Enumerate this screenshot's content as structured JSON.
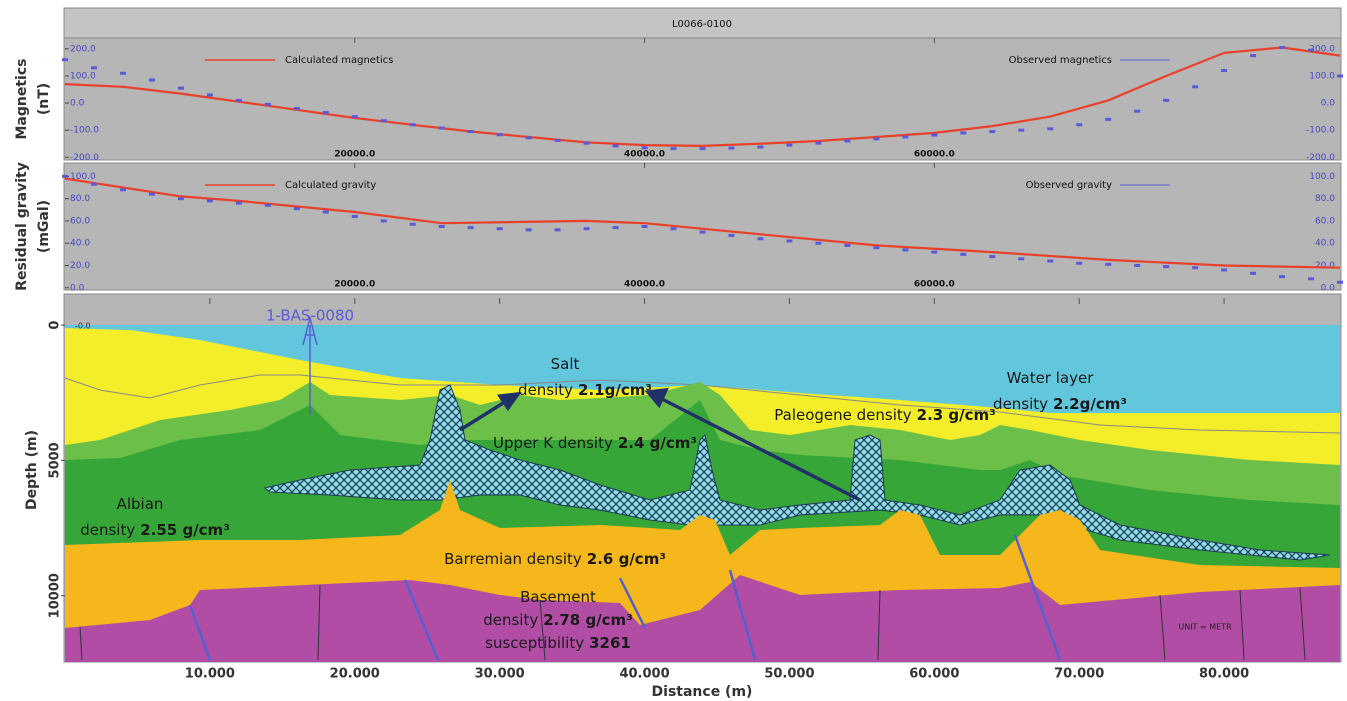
{
  "chart_data": [
    {
      "type": "line",
      "title": "L0066-0100",
      "ylabel": [
        "Magnetics",
        "(nT)"
      ],
      "xlim": [
        0,
        88000
      ],
      "ylim": [
        -210,
        240
      ],
      "xticks": [
        {
          "value": 20000,
          "label": "20000.0"
        },
        {
          "value": 40000,
          "label": "40000.0"
        },
        {
          "value": 60000,
          "label": "60000.0"
        }
      ],
      "yticks": [
        {
          "value": 200,
          "label": "200.0"
        },
        {
          "value": 100,
          "label": "100.0"
        },
        {
          "value": 0,
          "label": "0.0"
        },
        {
          "value": -100,
          "label": "-100.0"
        },
        {
          "value": -200,
          "label": "-200.0"
        }
      ],
      "legend": "top",
      "series": [
        {
          "name": "Calculated magnetics",
          "color": "#e8402a",
          "marker": "line",
          "x": [
            0,
            4000,
            8000,
            12000,
            16000,
            20000,
            24000,
            28000,
            32000,
            36000,
            40000,
            44000,
            48000,
            52000,
            56000,
            60000,
            64000,
            68000,
            72000,
            76000,
            80000,
            84000,
            88000
          ],
          "values": [
            70,
            60,
            35,
            5,
            -25,
            -55,
            -80,
            -105,
            -125,
            -145,
            -155,
            -158,
            -150,
            -140,
            -125,
            -110,
            -85,
            -50,
            10,
            100,
            185,
            205,
            175
          ]
        },
        {
          "name": "Observed magnetics",
          "color": "#5a5ad8",
          "marker": "dash",
          "x": [
            0,
            2000,
            4000,
            6000,
            8000,
            10000,
            12000,
            14000,
            16000,
            18000,
            20000,
            22000,
            24000,
            26000,
            28000,
            30000,
            32000,
            34000,
            36000,
            38000,
            40000,
            42000,
            44000,
            46000,
            48000,
            50000,
            52000,
            54000,
            56000,
            58000,
            60000,
            62000,
            64000,
            66000,
            68000,
            70000,
            72000,
            74000,
            76000,
            78000,
            80000,
            82000,
            84000,
            86000,
            88000
          ],
          "values": [
            160,
            130,
            110,
            85,
            55,
            30,
            10,
            -5,
            -20,
            -35,
            -50,
            -65,
            -80,
            -92,
            -105,
            -117,
            -128,
            -138,
            -148,
            -158,
            -165,
            -168,
            -168,
            -166,
            -162,
            -155,
            -148,
            -140,
            -132,
            -125,
            -118,
            -110,
            -105,
            -100,
            -95,
            -80,
            -60,
            -30,
            10,
            60,
            120,
            175,
            205,
            195,
            100
          ]
        }
      ]
    },
    {
      "type": "line",
      "ylabel": [
        "Residual gravity",
        "(mGal)"
      ],
      "xlim": [
        0,
        88000
      ],
      "ylim": [
        -2,
        112
      ],
      "xticks": [
        {
          "value": 20000,
          "label": "20000.0"
        },
        {
          "value": 40000,
          "label": "40000.0"
        },
        {
          "value": 60000,
          "label": "60000.0"
        }
      ],
      "yticks": [
        {
          "value": 100,
          "label": "100.0"
        },
        {
          "value": 80,
          "label": "80.0"
        },
        {
          "value": 60,
          "label": "60.0"
        },
        {
          "value": 40,
          "label": "40.0"
        },
        {
          "value": 20,
          "label": "20.0"
        },
        {
          "value": 0,
          "label": "0.0"
        }
      ],
      "legend": "top",
      "series": [
        {
          "name": "Calculated gravity",
          "color": "#e8402a",
          "marker": "line",
          "x": [
            0,
            8000,
            12000,
            20000,
            26000,
            36000,
            40000,
            48000,
            56000,
            64000,
            72000,
            80000,
            88000
          ],
          "values": [
            98,
            82,
            78,
            68,
            58,
            60,
            58,
            48,
            38,
            32,
            25,
            20,
            18
          ]
        },
        {
          "name": "Observed gravity",
          "color": "#5a5ad8",
          "marker": "dash",
          "x": [
            0,
            2000,
            4000,
            6000,
            8000,
            10000,
            12000,
            14000,
            16000,
            18000,
            20000,
            22000,
            24000,
            26000,
            28000,
            30000,
            32000,
            34000,
            36000,
            38000,
            40000,
            42000,
            44000,
            46000,
            48000,
            50000,
            52000,
            54000,
            56000,
            58000,
            60000,
            62000,
            64000,
            66000,
            68000,
            70000,
            72000,
            74000,
            76000,
            78000,
            80000,
            82000,
            84000,
            86000,
            88000
          ],
          "values": [
            100,
            93,
            88,
            84,
            80,
            78,
            76,
            74,
            71,
            68,
            64,
            60,
            57,
            55,
            54,
            53,
            52,
            52,
            53,
            54,
            55,
            53,
            50,
            47,
            44,
            42,
            40,
            38,
            36,
            34,
            32,
            30,
            28,
            26,
            24,
            22,
            21,
            20,
            19,
            18,
            16,
            13,
            10,
            8,
            5
          ]
        }
      ]
    },
    {
      "type": "section",
      "xlabel": "Distance (m)",
      "ylabel": "Depth (m)",
      "xlim": [
        0,
        88000
      ],
      "ylim": [
        -1000,
        12450
      ],
      "y_inverted": true,
      "xticks": [
        {
          "value": 10000,
          "label": "10.000"
        },
        {
          "value": 20000,
          "label": "20.000"
        },
        {
          "value": 30000,
          "label": "30.000"
        },
        {
          "value": 40000,
          "label": "40.000"
        },
        {
          "value": 50000,
          "label": "50.000"
        },
        {
          "value": 60000,
          "label": "60.000"
        },
        {
          "value": 70000,
          "label": "70.000"
        },
        {
          "value": 80000,
          "label": "80.000"
        }
      ],
      "yticks": [
        0,
        5000,
        10000
      ],
      "top_label": "-0.0",
      "well_label": "1-BAS-0080",
      "unit_label": "UNIT = METR",
      "layers": [
        {
          "lines": [
            [
              "Water layer"
            ],
            [
              "density",
              "2.2g/cm³"
            ]
          ]
        },
        {
          "lines": [
            [
              "Salt"
            ],
            [
              "density",
              "2.1g/cm³"
            ]
          ]
        },
        {
          "lines": [
            [
              "Paleogene density",
              "2.3 g/cm³"
            ]
          ]
        },
        {
          "lines": [
            [
              "Upper K density",
              "2.4 g/cm³"
            ]
          ]
        },
        {
          "lines": [
            [
              "Albian"
            ],
            [
              "density",
              "2.55 g/cm³"
            ]
          ]
        },
        {
          "lines": [
            [
              "Barremian density",
              "2.6 g/cm³"
            ]
          ]
        },
        {
          "lines": [
            [
              "Basement"
            ],
            [
              "density",
              "2.78 g/cm³"
            ],
            [
              "susceptibility",
              "3261"
            ]
          ]
        }
      ]
    }
  ]
}
